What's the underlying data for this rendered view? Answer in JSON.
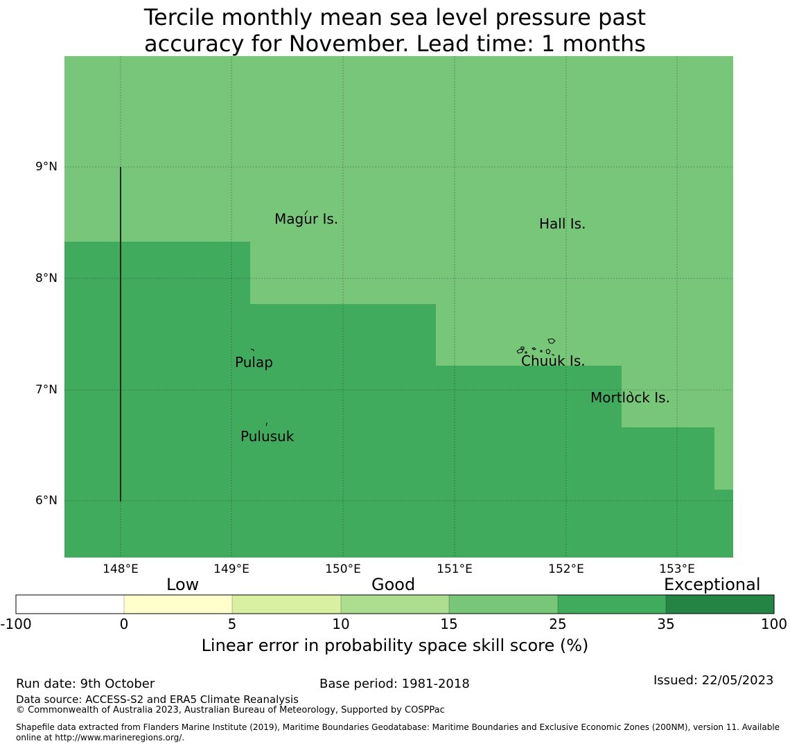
{
  "title": {
    "line1": "Tercile monthly mean sea level pressure past",
    "line2": "accuracy for November. Lead time: 1 months"
  },
  "map": {
    "lat_labels": [
      "9°N",
      "8°N",
      "7°N",
      "6°N"
    ],
    "lon_labels": [
      "148°E",
      "149°E",
      "150°E",
      "151°E",
      "152°E",
      "153°E"
    ],
    "extent": {
      "lon_min": 147.5,
      "lon_max": 153.5,
      "lat_min": 5.5,
      "lat_max": 10.0
    },
    "places": [
      "Magur Is.",
      "Hall Is.",
      "Pulap",
      "Chuuk Is.",
      "Mortlock Is.",
      "Pulusuk"
    ],
    "skill_regions": [
      {
        "category": "25 to 35",
        "color": "#41ab5d"
      },
      {
        "category": "15 to 25",
        "color": "#78c679"
      }
    ]
  },
  "colorbar": {
    "categories": [
      "Low",
      "Good",
      "Exceptional"
    ],
    "ticks": [
      "-100",
      "0",
      "5",
      "10",
      "15",
      "25",
      "35",
      "100"
    ],
    "colors": [
      "#ffffff",
      "#ffffcc",
      "#d9f0a3",
      "#addd8e",
      "#78c679",
      "#41ab5d",
      "#238443"
    ],
    "label": "Linear error in probability space skill score (%)"
  },
  "footer": {
    "run_date": "Run date: 9th October",
    "base_period": "Base period: 1981-2018",
    "issued": "Issued: 22/05/2023",
    "data_source": "Data source: ACCESS-S2 and ERA5 Climate Reanalysis",
    "copyright": "© Commonwealth of Australia 2023, Australian Bureau of Meteorology, Supported by COSPPac",
    "shapefile_line1": "Shapefile data extracted from Flanders Marine Institute (2019), Maritime Boundaries Geodatabase: Maritime Boundaries and Exclusive Economic Zones (200NM), version 11. Available",
    "shapefile_line2": "online at http://www.marineregions.org/."
  }
}
